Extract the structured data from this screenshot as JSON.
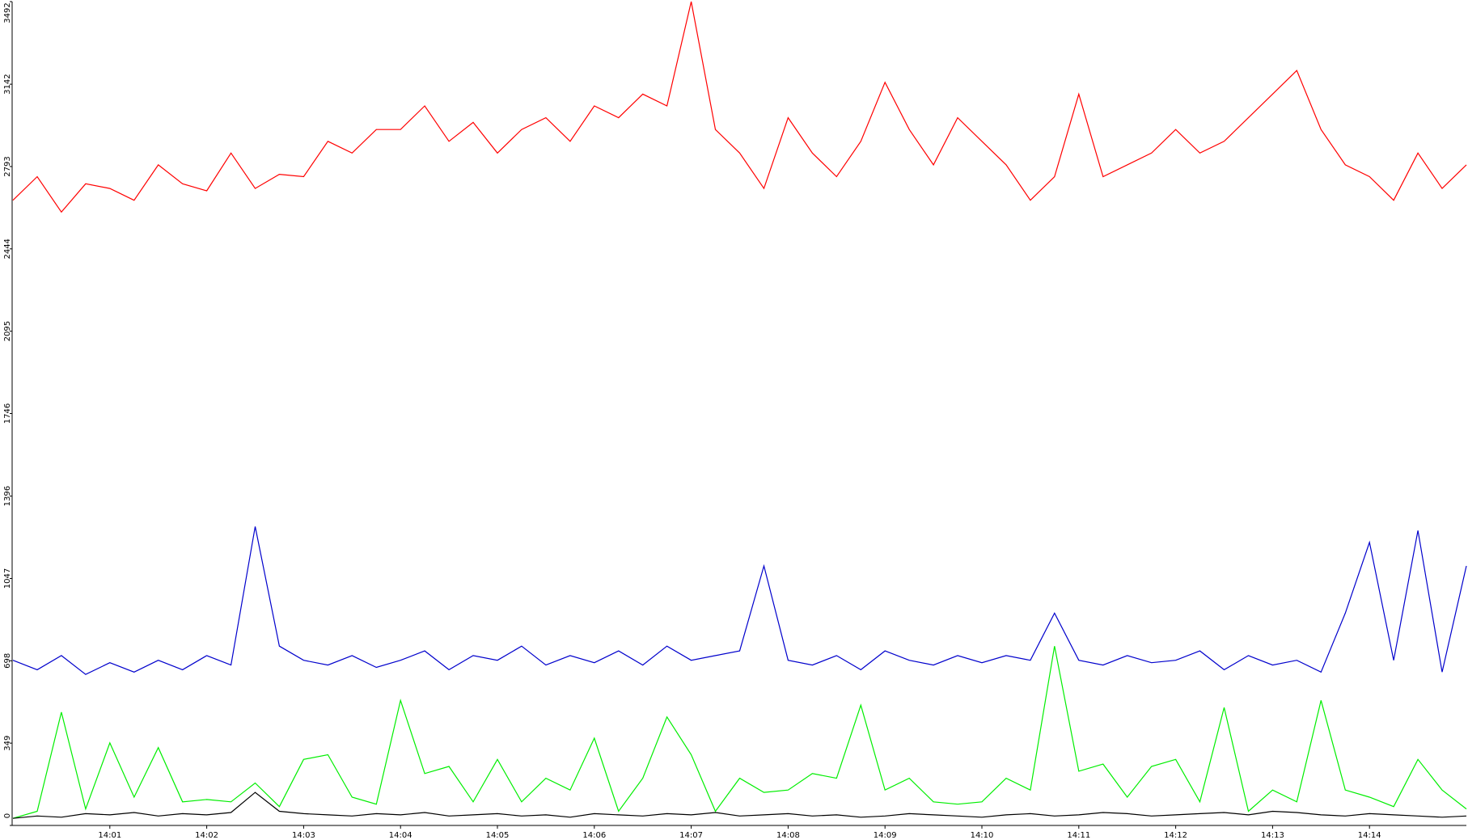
{
  "chart_data": {
    "type": "line",
    "x": [
      0,
      0.25,
      0.5,
      0.75,
      1,
      1.25,
      1.5,
      1.75,
      2,
      2.25,
      2.5,
      2.75,
      3,
      3.25,
      3.5,
      3.75,
      4,
      4.25,
      4.5,
      4.75,
      5,
      5.25,
      5.5,
      5.75,
      6,
      6.25,
      6.5,
      6.75,
      7,
      7.25,
      7.5,
      7.75,
      8,
      8.25,
      8.5,
      8.75,
      9,
      9.25,
      9.5,
      9.75,
      10,
      10.25,
      10.5,
      10.75,
      11,
      11.25,
      11.5,
      11.75,
      12,
      12.25,
      12.5,
      12.75,
      13,
      13.25,
      13.5,
      13.75,
      14,
      14.25,
      14.5,
      14.75,
      15
    ],
    "series": [
      {
        "color": "#ff0000",
        "values": [
          2650,
          2750,
          2600,
          2720,
          2700,
          2650,
          2800,
          2720,
          2690,
          2850,
          2700,
          2760,
          2750,
          2900,
          2850,
          2950,
          2950,
          3050,
          2900,
          2980,
          2850,
          2950,
          3000,
          2900,
          3050,
          3000,
          3100,
          3050,
          3492,
          2950,
          2850,
          2700,
          3000,
          2850,
          2750,
          2900,
          3150,
          2950,
          2800,
          3000,
          2900,
          2800,
          2650,
          2750,
          3100,
          2750,
          2800,
          2850,
          2950,
          2850,
          2900,
          3000,
          3100,
          3200,
          2950,
          2800,
          2750,
          2650,
          2850,
          2700,
          2800
        ]
      },
      {
        "color": "#0000cc",
        "values": [
          700,
          660,
          720,
          640,
          690,
          650,
          700,
          660,
          720,
          680,
          1267,
          760,
          700,
          680,
          720,
          670,
          700,
          740,
          660,
          720,
          700,
          760,
          680,
          720,
          690,
          740,
          680,
          760,
          700,
          720,
          740,
          1100,
          700,
          680,
          720,
          660,
          740,
          700,
          680,
          720,
          690,
          720,
          700,
          900,
          700,
          680,
          720,
          690,
          700,
          740,
          660,
          720,
          680,
          700,
          650,
          900,
          1200,
          700,
          1250,
          650,
          1100
        ]
      },
      {
        "color": "#00ee00",
        "values": [
          30,
          60,
          480,
          70,
          350,
          120,
          330,
          100,
          110,
          100,
          180,
          80,
          280,
          300,
          120,
          90,
          530,
          220,
          250,
          100,
          280,
          100,
          200,
          150,
          370,
          60,
          200,
          460,
          300,
          60,
          200,
          140,
          150,
          220,
          200,
          510,
          150,
          200,
          100,
          90,
          100,
          200,
          150,
          760,
          230,
          260,
          120,
          250,
          280,
          100,
          500,
          60,
          150,
          100,
          530,
          150,
          120,
          80,
          280,
          150,
          70
        ]
      },
      {
        "color": "#000000",
        "values": [
          30,
          40,
          35,
          50,
          45,
          55,
          40,
          50,
          45,
          55,
          140,
          60,
          50,
          45,
          40,
          50,
          45,
          55,
          40,
          45,
          50,
          40,
          45,
          35,
          50,
          45,
          40,
          50,
          45,
          55,
          40,
          45,
          50,
          40,
          45,
          35,
          40,
          50,
          45,
          40,
          35,
          45,
          50,
          40,
          45,
          55,
          50,
          40,
          45,
          50,
          55,
          45,
          60,
          55,
          45,
          40,
          50,
          45,
          40,
          35,
          40
        ]
      }
    ],
    "xlim": [
      0,
      15
    ],
    "xticks": [
      {
        "value": 1,
        "label": "14:01"
      },
      {
        "value": 2,
        "label": "14:02"
      },
      {
        "value": 3,
        "label": "14:03"
      },
      {
        "value": 4,
        "label": "14:04"
      },
      {
        "value": 5,
        "label": "14:05"
      },
      {
        "value": 6,
        "label": "14:06"
      },
      {
        "value": 7,
        "label": "14:07"
      },
      {
        "value": 8,
        "label": "14:08"
      },
      {
        "value": 9,
        "label": "14:09"
      },
      {
        "value": 10,
        "label": "14:10"
      },
      {
        "value": 11,
        "label": "14:11"
      },
      {
        "value": 12,
        "label": "14:12"
      },
      {
        "value": 13,
        "label": "14:13"
      },
      {
        "value": 14,
        "label": "14:14"
      }
    ],
    "ylim": [
      0,
      3492
    ],
    "yticks": [
      0,
      349,
      698,
      1047,
      1396,
      1746,
      2095,
      2444,
      2793,
      3142,
      3492
    ],
    "grid": false
  }
}
